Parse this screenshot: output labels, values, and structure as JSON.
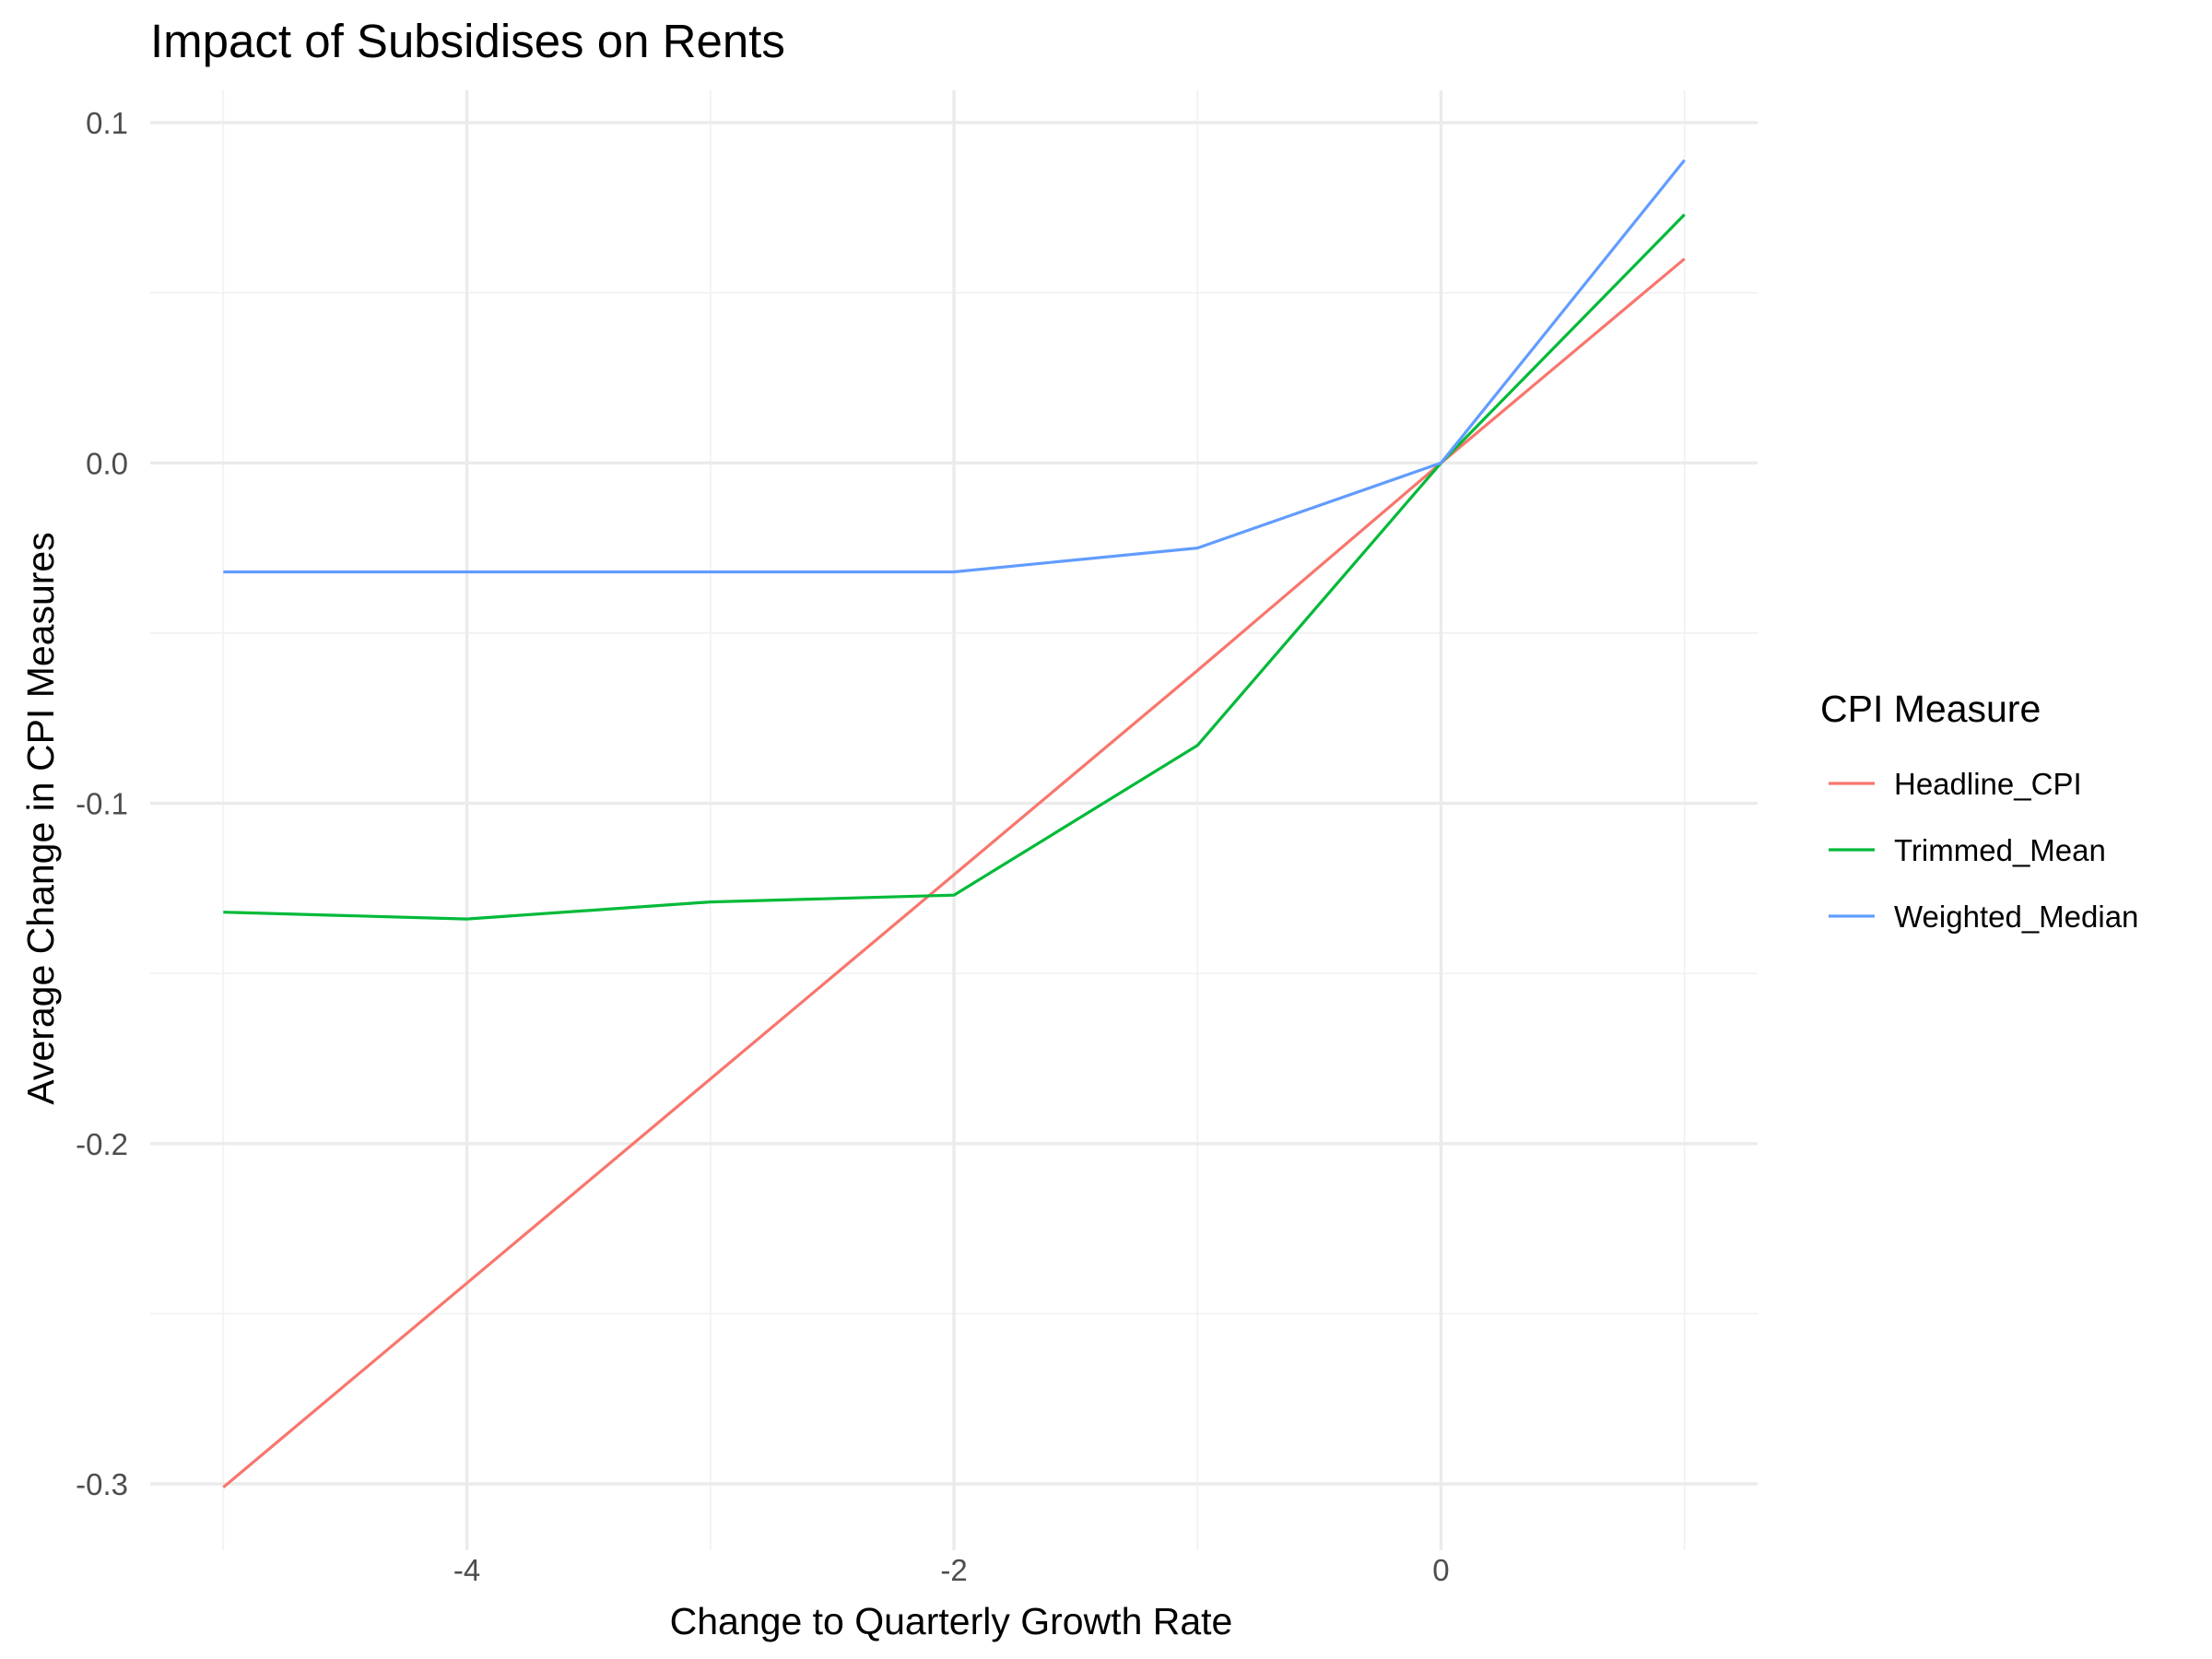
{
  "chart_data": {
    "type": "line",
    "title": "Impact of Subsidises on Rents",
    "xlabel": "Change to Quarterly Growth Rate",
    "ylabel": "Average Change in CPI Measures",
    "x": [
      -5,
      -4,
      -3,
      -2,
      -1,
      0,
      1
    ],
    "xlim": [
      -5.3,
      1.3
    ],
    "ylim": [
      -0.3195,
      0.1095
    ],
    "x_ticks": [
      -4,
      -2,
      0
    ],
    "x_tick_labels": [
      "-4",
      "-2",
      "0"
    ],
    "y_ticks": [
      -0.3,
      -0.2,
      -0.1,
      0.0,
      0.1
    ],
    "y_tick_labels": [
      "-0.3",
      "-0.2",
      "-0.1",
      "0.0",
      "0.1"
    ],
    "grid": true,
    "legend": {
      "title": "CPI Measure",
      "position": "right"
    },
    "series": [
      {
        "name": "Headline_CPI",
        "color": "#F8766D",
        "values": [
          -0.301,
          -0.241,
          -0.181,
          -0.121,
          -0.061,
          0.0,
          0.06
        ]
      },
      {
        "name": "Trimmed_Mean",
        "color": "#00BA38",
        "values": [
          -0.132,
          -0.134,
          -0.129,
          -0.127,
          -0.083,
          0.0,
          0.073
        ]
      },
      {
        "name": "Weighted_Median",
        "color": "#619CFF",
        "values": [
          -0.032,
          -0.032,
          -0.032,
          -0.032,
          -0.025,
          0.0,
          0.089
        ]
      }
    ]
  }
}
